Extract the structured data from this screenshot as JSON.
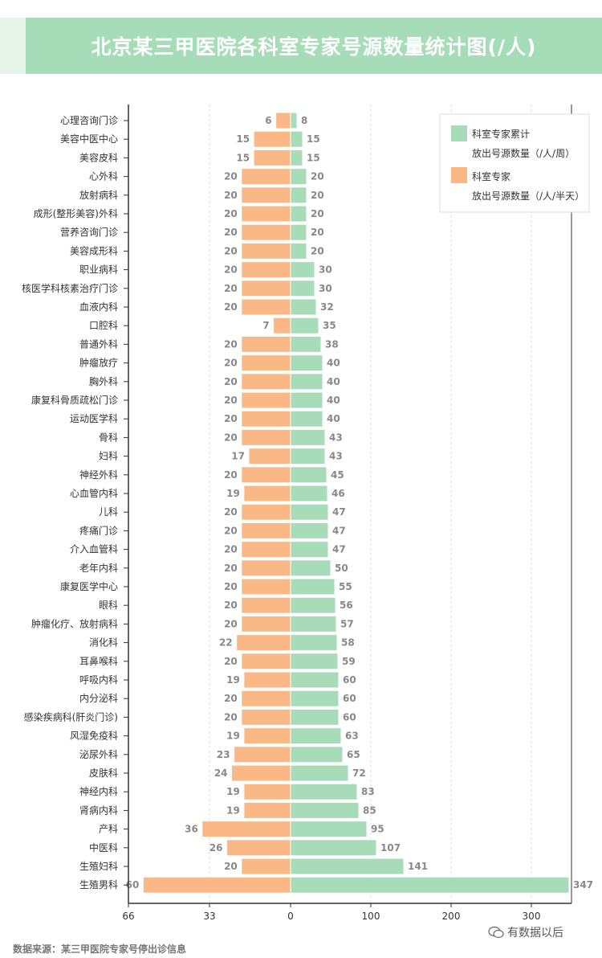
{
  "title": "北京某三甲医院各科室专家号源数量统计图(/人)",
  "source_note": "数据来源：某三甲医院专家号停出诊信息",
  "brand": "有数据以后",
  "colors": {
    "green": "#a8dcb8",
    "orange": "#f9b886",
    "banner": "#a7dcb8",
    "label": "#888888",
    "axis": "#333333"
  },
  "chart_data": {
    "type": "bar",
    "orientation": "horizontal-diverging",
    "categories": [
      "心理咨询门诊",
      "美容中医中心",
      "美容皮科",
      "心外科",
      "放射病科",
      "成形(整形美容)外科",
      "营养咨询门诊",
      "美容成形科",
      "职业病科",
      "核医学科核素治疗门诊",
      "血液内科",
      "口腔科",
      "普通外科",
      "肿瘤放疗",
      "胸外科",
      "康复科骨质疏松门诊",
      "运动医学科",
      "骨科",
      "妇科",
      "神经外科",
      "心血管内科",
      "儿科",
      "疼痛门诊",
      "介入血管科",
      "老年内科",
      "康复医学中心",
      "眼科",
      "肿瘤化疗、放射病科",
      "消化科",
      "耳鼻喉科",
      "呼吸内科",
      "内分泌科",
      "感染疾病科(肝炎门诊)",
      "风湿免疫科",
      "泌尿外科",
      "皮肤科",
      "神经内科",
      "肾病内科",
      "产科",
      "中医科",
      "生殖妇科",
      "生殖男科"
    ],
    "series": [
      {
        "name": "科室专家累计放出号源数量（/人/周）",
        "legend_lines": [
          "科室专家累计",
          "放出号源数量（/人/周）"
        ],
        "side": "right",
        "color": "#a8dcb8",
        "values": [
          8,
          15,
          15,
          20,
          20,
          20,
          20,
          20,
          30,
          30,
          32,
          35,
          38,
          40,
          40,
          40,
          40,
          43,
          43,
          45,
          46,
          47,
          47,
          47,
          50,
          55,
          56,
          57,
          58,
          59,
          60,
          60,
          60,
          63,
          65,
          72,
          83,
          85,
          95,
          107,
          141,
          347
        ]
      },
      {
        "name": "科室专家放出号源数量（/人/半天）",
        "legend_lines": [
          "科室专家",
          "放出号源数量（/人/半天）"
        ],
        "side": "left",
        "color": "#f9b886",
        "values": [
          6,
          15,
          15,
          20,
          20,
          20,
          20,
          20,
          20,
          20,
          20,
          7,
          20,
          20,
          20,
          20,
          20,
          20,
          17,
          20,
          19,
          20,
          20,
          20,
          20,
          20,
          20,
          20,
          22,
          20,
          19,
          20,
          20,
          19,
          23,
          24,
          19,
          19,
          36,
          26,
          20,
          60
        ]
      }
    ],
    "left_axis": {
      "range": [
        0,
        66
      ],
      "ticks": [
        "66",
        "33",
        "0"
      ]
    },
    "right_axis": {
      "range": [
        0,
        350
      ],
      "ticks": [
        "100",
        "200",
        "300"
      ]
    },
    "grid": "vertical-dashed",
    "legend_position": "top-right"
  }
}
